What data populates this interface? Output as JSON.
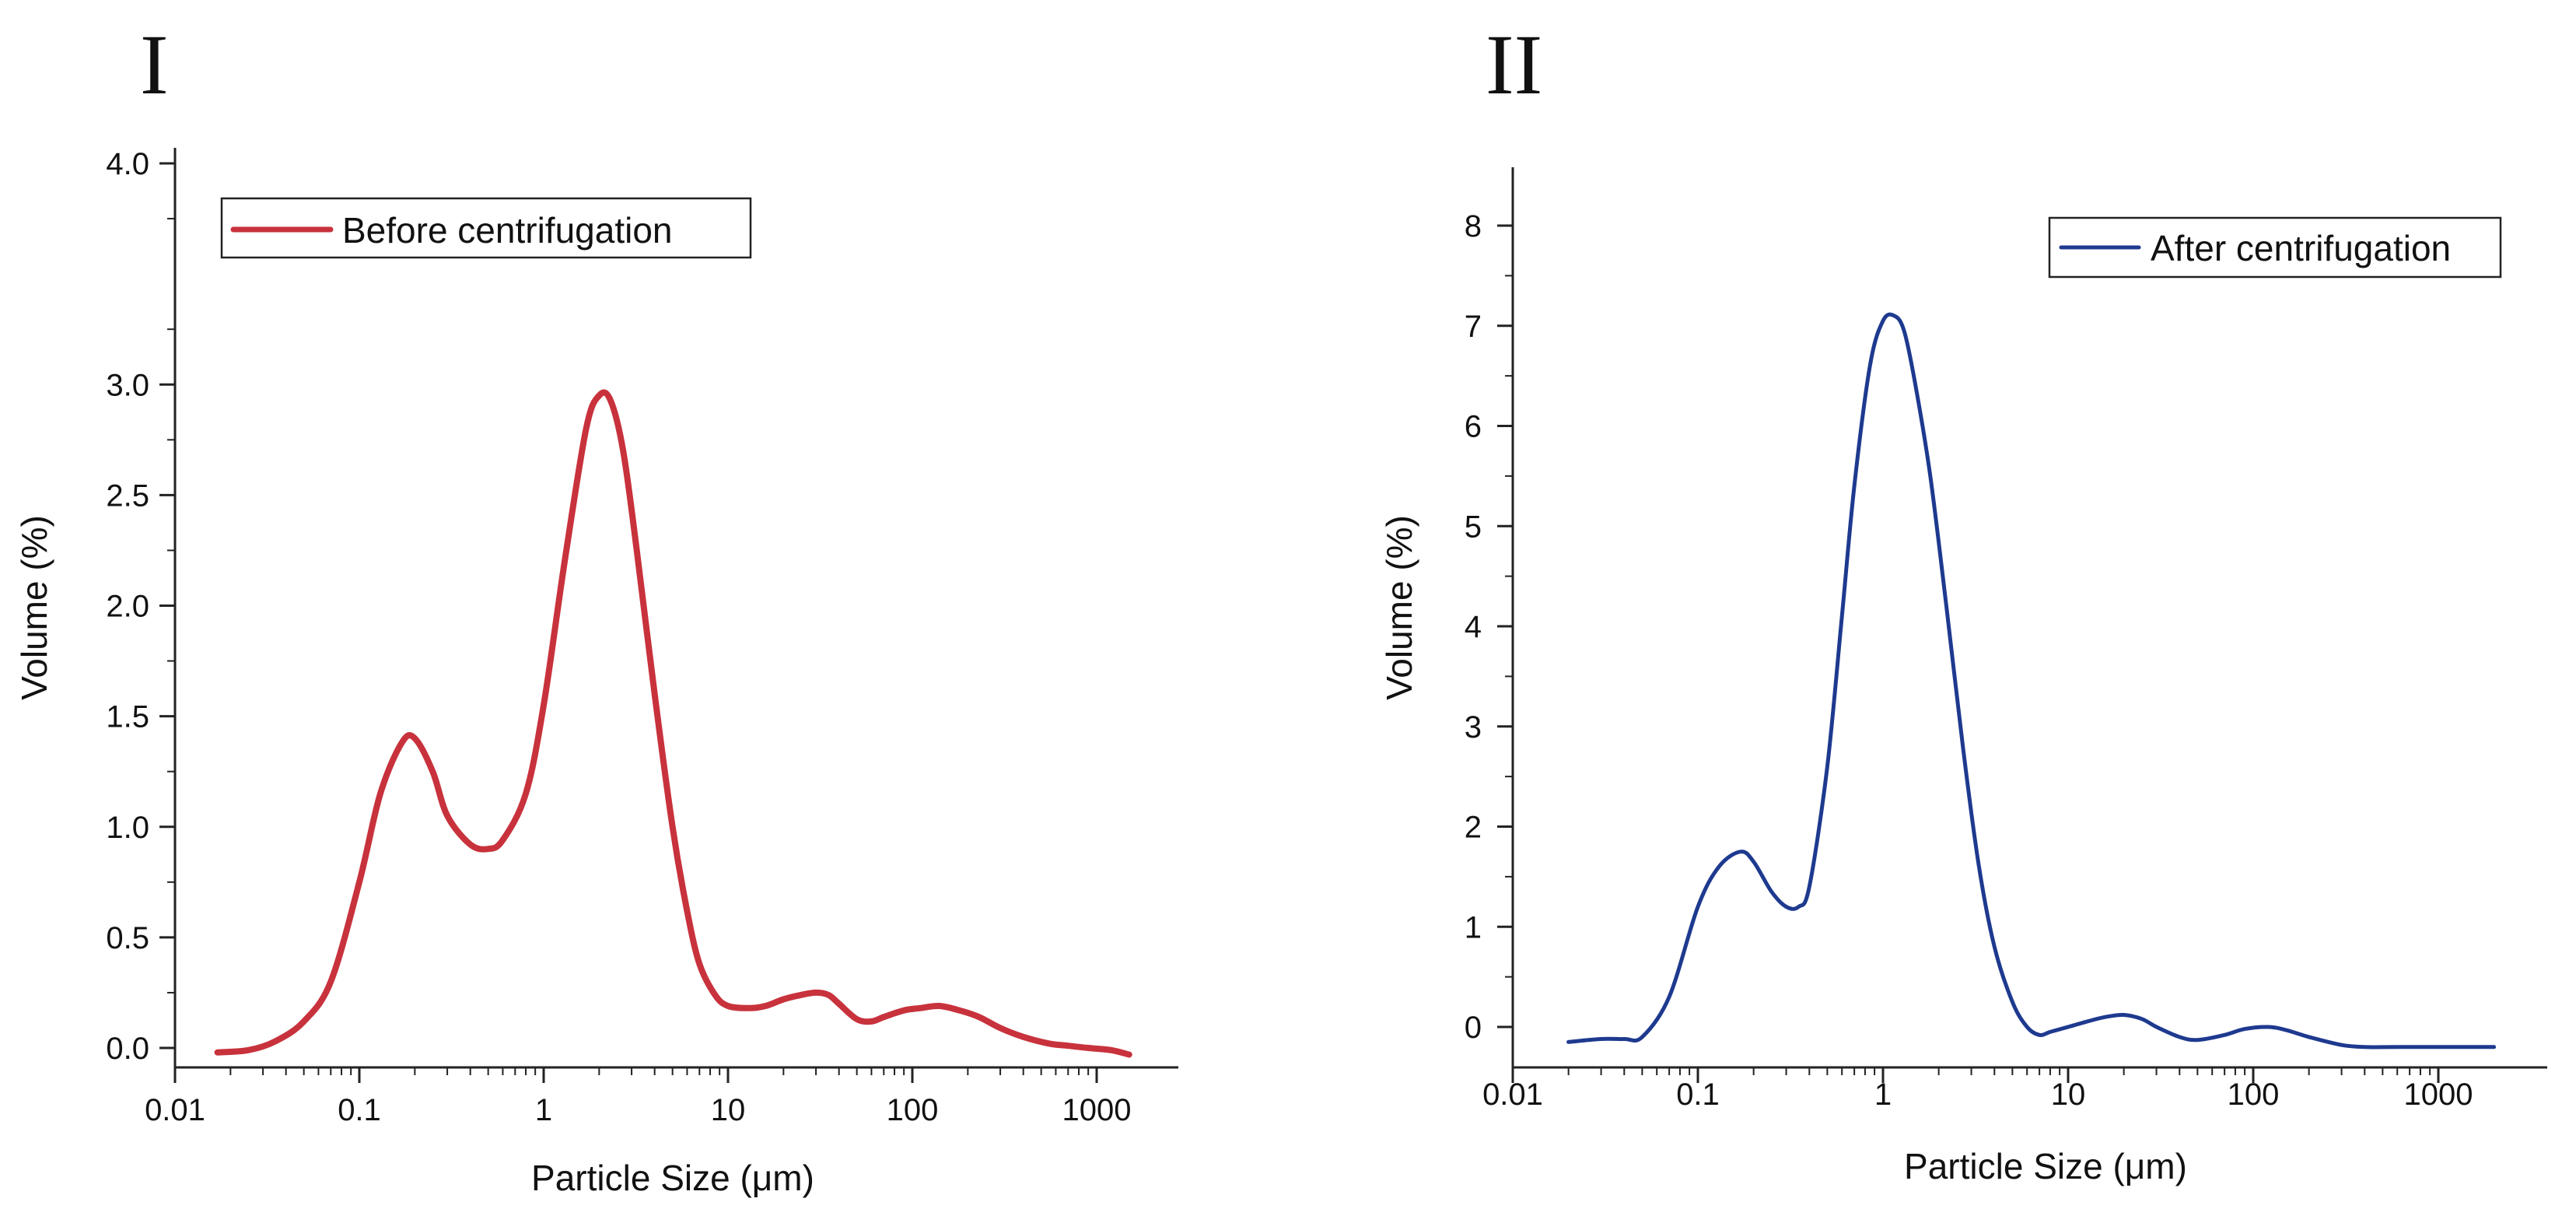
{
  "chart_data": [
    {
      "panel_label": "I",
      "type": "line",
      "xscale": "log",
      "xlabel": "Particle Size (μm)",
      "ylabel": "Volume (%)",
      "xlim": [
        0.01,
        1500
      ],
      "ylim": [
        -0.05,
        4.0
      ],
      "x_ticks": [
        0.01,
        0.1,
        1,
        10,
        100,
        1000
      ],
      "x_tick_labels": [
        "0.01",
        "0.1",
        "1",
        "10",
        "100",
        "1000"
      ],
      "y_ticks": [
        0.0,
        0.5,
        1.0,
        1.5,
        2.0,
        2.5,
        3.0,
        4.0
      ],
      "y_tick_labels": [
        "0.0",
        "0.5",
        "1.0",
        "1.5",
        "2.0",
        "2.5",
        "3.0",
        "4.0"
      ],
      "legend_position": "top-left",
      "series": [
        {
          "name": "Before centrifugation",
          "color": "#c8323c",
          "x": [
            0.017,
            0.025,
            0.035,
            0.05,
            0.07,
            0.1,
            0.13,
            0.17,
            0.2,
            0.25,
            0.3,
            0.4,
            0.5,
            0.6,
            0.8,
            1.0,
            1.3,
            1.7,
            2.0,
            2.3,
            2.7,
            3.2,
            4.0,
            5.0,
            6.0,
            7.0,
            8.5,
            10,
            13,
            16,
            20,
            25,
            30,
            35,
            40,
            50,
            60,
            70,
            90,
            110,
            140,
            180,
            230,
            300,
            400,
            550,
            700,
            900,
            1200,
            1500
          ],
          "y": [
            -0.02,
            -0.01,
            0.03,
            0.12,
            0.3,
            0.75,
            1.15,
            1.38,
            1.4,
            1.25,
            1.05,
            0.92,
            0.9,
            0.94,
            1.15,
            1.55,
            2.2,
            2.8,
            2.95,
            2.93,
            2.7,
            2.25,
            1.6,
            1.0,
            0.62,
            0.38,
            0.24,
            0.19,
            0.18,
            0.19,
            0.22,
            0.24,
            0.25,
            0.24,
            0.2,
            0.13,
            0.12,
            0.14,
            0.17,
            0.18,
            0.19,
            0.17,
            0.14,
            0.09,
            0.05,
            0.02,
            0.01,
            0.0,
            -0.01,
            -0.03
          ]
        }
      ]
    },
    {
      "panel_label": "II",
      "type": "line",
      "xscale": "log",
      "xlabel": "Particle Size (μm)",
      "ylabel": "Volume (%)",
      "xlim": [
        0.01,
        2000
      ],
      "ylim": [
        -0.3,
        8.4
      ],
      "x_ticks": [
        0.01,
        0.1,
        1,
        10,
        100,
        1000
      ],
      "x_tick_labels": [
        "0.01",
        "0.1",
        "1",
        "10",
        "100",
        "1000"
      ],
      "y_ticks": [
        0,
        1,
        2,
        3,
        4,
        5,
        6,
        7,
        8
      ],
      "y_tick_labels": [
        "0",
        "1",
        "2",
        "3",
        "4",
        "5",
        "6",
        "7",
        "8"
      ],
      "legend_position": "top-right",
      "series": [
        {
          "name": "After centrifugation",
          "color": "#1e3a8f",
          "x": [
            0.02,
            0.03,
            0.04,
            0.05,
            0.07,
            0.1,
            0.13,
            0.17,
            0.2,
            0.25,
            0.3,
            0.35,
            0.4,
            0.5,
            0.6,
            0.7,
            0.85,
            1.0,
            1.15,
            1.3,
            1.5,
            1.8,
            2.2,
            2.7,
            3.3,
            4.0,
            5.0,
            6.0,
            7.0,
            8.0,
            10,
            13,
            16,
            20,
            25,
            30,
            40,
            50,
            70,
            90,
            120,
            150,
            200,
            300,
            400,
            600,
            1000,
            2000
          ],
          "y": [
            -0.15,
            -0.12,
            -0.12,
            -0.1,
            0.3,
            1.2,
            1.6,
            1.75,
            1.65,
            1.35,
            1.2,
            1.2,
            1.4,
            2.6,
            4.1,
            5.4,
            6.6,
            7.05,
            7.1,
            6.95,
            6.4,
            5.5,
            4.2,
            2.8,
            1.6,
            0.8,
            0.25,
            0.0,
            -0.08,
            -0.05,
            0.0,
            0.06,
            0.1,
            0.12,
            0.08,
            0.0,
            -0.1,
            -0.13,
            -0.08,
            -0.02,
            0.0,
            -0.03,
            -0.1,
            -0.18,
            -0.2,
            -0.2,
            -0.2,
            -0.2
          ]
        }
      ]
    }
  ]
}
